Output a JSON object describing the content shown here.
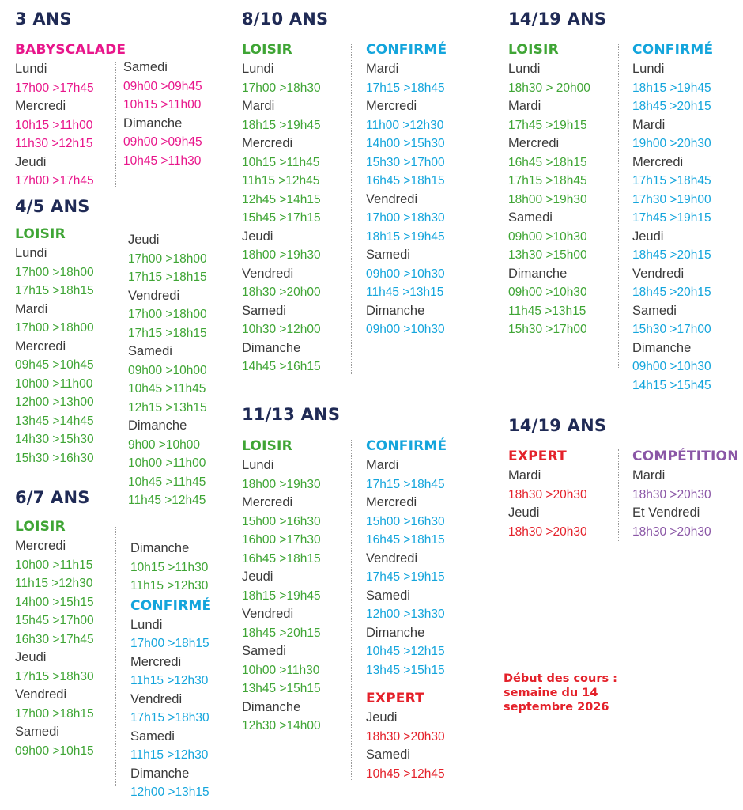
{
  "colors": {
    "babyscalade": "#e8168b",
    "loisir": "#3fa535",
    "confirme": "#14a5dc",
    "expert": "#e4212a",
    "competition": "#8a56a6",
    "heading": "#1f2a55"
  },
  "s3": {
    "title": "3 ANS",
    "cat": "BABYSCALADE",
    "a": [
      [
        "day",
        "Lundi"
      ],
      [
        "t",
        "17h00 >17h45"
      ],
      [
        "day",
        "Mercredi"
      ],
      [
        "t",
        "10h15 >11h00"
      ],
      [
        "t",
        "11h30 >12h15"
      ],
      [
        "day",
        "Jeudi"
      ],
      [
        "t",
        "17h00 >17h45"
      ]
    ],
    "b": [
      [
        "day",
        "Samedi"
      ],
      [
        "t",
        "09h00 >09h45"
      ],
      [
        "t",
        "10h15 >11h00"
      ],
      [
        "day",
        "Dimanche"
      ],
      [
        "t",
        "09h00 >09h45"
      ],
      [
        "t",
        "10h45 >11h30"
      ]
    ]
  },
  "s45": {
    "title": "4/5 ANS",
    "cat": "LOISIR",
    "a": [
      [
        "day",
        "Lundi"
      ],
      [
        "t",
        "17h00 >18h00"
      ],
      [
        "t",
        "17h15 >18h15"
      ],
      [
        "day",
        "Mardi"
      ],
      [
        "t",
        "17h00 >18h00"
      ],
      [
        "day",
        "Mercredi"
      ],
      [
        "t",
        "09h45 >10h45"
      ],
      [
        "t",
        "10h00 >11h00"
      ],
      [
        "t",
        "12h00 >13h00"
      ],
      [
        "t",
        "13h45 >14h45"
      ],
      [
        "t",
        "14h30 >15h30"
      ],
      [
        "t",
        "15h30 >16h30"
      ]
    ],
    "b": [
      [
        "day",
        "Jeudi"
      ],
      [
        "t",
        "17h00 >18h00"
      ],
      [
        "t",
        "17h15 >18h15"
      ],
      [
        "day",
        "Vendredi"
      ],
      [
        "t",
        "17h00 >18h00"
      ],
      [
        "t",
        "17h15 >18h15"
      ],
      [
        "day",
        "Samedi"
      ],
      [
        "t",
        "09h00 >10h00"
      ],
      [
        "t",
        "10h45 >11h45"
      ],
      [
        "t",
        "12h15 >13h15"
      ],
      [
        "day",
        "Dimanche"
      ],
      [
        "t",
        "9h00 >10h00"
      ],
      [
        "t",
        "10h00 >11h00"
      ],
      [
        "t",
        "10h45 >11h45"
      ],
      [
        "t",
        "11h45 >12h45"
      ]
    ]
  },
  "s67": {
    "title": "6/7 ANS",
    "cat": "LOISIR",
    "cat2": "CONFIRMÉ",
    "a": [
      [
        "day",
        "Mercredi"
      ],
      [
        "t",
        "10h00 >11h15"
      ],
      [
        "t",
        "11h15 >12h30"
      ],
      [
        "t",
        "14h00 >15h15"
      ],
      [
        "t",
        "15h45 >17h00"
      ],
      [
        "t",
        "16h30 >17h45"
      ],
      [
        "day",
        "Jeudi"
      ],
      [
        "t",
        "17h15 >18h30"
      ],
      [
        "day",
        "Vendredi"
      ],
      [
        "t",
        "17h00 >18h15"
      ],
      [
        "day",
        "Samedi"
      ],
      [
        "t",
        "09h00 >10h15"
      ]
    ],
    "b": [
      [
        "day",
        "Dimanche"
      ],
      [
        "t",
        "10h15 >11h30"
      ],
      [
        "t",
        "11h15 >12h30"
      ]
    ],
    "c": [
      [
        "day",
        "Lundi"
      ],
      [
        "t",
        "17h00 >18h15"
      ],
      [
        "day",
        "Mercredi"
      ],
      [
        "t",
        "11h15 >12h30"
      ],
      [
        "day",
        "Vendredi"
      ],
      [
        "t",
        "17h15 >18h30"
      ],
      [
        "day",
        "Samedi"
      ],
      [
        "t",
        "11h15 >12h30"
      ],
      [
        "day",
        "Dimanche"
      ],
      [
        "t",
        "12h00 >13h15"
      ]
    ]
  },
  "s810": {
    "title": "8/10 ANS",
    "cat": "LOISIR",
    "cat2": "CONFIRMÉ",
    "a": [
      [
        "day",
        "Lundi"
      ],
      [
        "t",
        "17h00 >18h30"
      ],
      [
        "day",
        "Mardi"
      ],
      [
        "t",
        "18h15 >19h45"
      ],
      [
        "day",
        "Mercredi"
      ],
      [
        "t",
        "10h15 >11h45"
      ],
      [
        "t",
        "11h15 >12h45"
      ],
      [
        "t",
        "12h45 >14h15"
      ],
      [
        "t",
        "15h45 >17h15"
      ],
      [
        "day",
        "Jeudi"
      ],
      [
        "t",
        "18h00 >19h30"
      ],
      [
        "day",
        "Vendredi"
      ],
      [
        "t",
        "18h30 >20h00"
      ],
      [
        "day",
        "Samedi"
      ],
      [
        "t",
        "10h30 >12h00"
      ],
      [
        "day",
        "Dimanche"
      ],
      [
        "t",
        "14h45 >16h15"
      ]
    ],
    "b": [
      [
        "day",
        "Mardi"
      ],
      [
        "t",
        "17h15 >18h45"
      ],
      [
        "day",
        "Mercredi"
      ],
      [
        "t",
        "11h00 >12h30"
      ],
      [
        "t",
        "14h00 >15h30"
      ],
      [
        "t",
        "15h30 >17h00"
      ],
      [
        "t",
        "16h45 >18h15"
      ],
      [
        "day",
        "Vendredi"
      ],
      [
        "t",
        "17h00 >18h30"
      ],
      [
        "t",
        "18h15 >19h45"
      ],
      [
        "day",
        "Samedi"
      ],
      [
        "t",
        "09h00 >10h30"
      ],
      [
        "t",
        "11h45 >13h15"
      ],
      [
        "day",
        "Dimanche"
      ],
      [
        "t",
        "09h00 >10h30"
      ]
    ]
  },
  "s1113": {
    "title": "11/13 ANS",
    "cat": "LOISIR",
    "cat2": "CONFIRMÉ",
    "cat3": "EXPERT",
    "a": [
      [
        "day",
        "Lundi"
      ],
      [
        "t",
        "18h00 >19h30"
      ],
      [
        "day",
        "Mercredi"
      ],
      [
        "t",
        "15h00 >16h30"
      ],
      [
        "t",
        "16h00 >17h30"
      ],
      [
        "t",
        "16h45 >18h15"
      ],
      [
        "day",
        "Jeudi"
      ],
      [
        "t",
        "18h15 >19h45"
      ],
      [
        "day",
        "Vendredi"
      ],
      [
        "t",
        "18h45 >20h15"
      ],
      [
        "day",
        "Samedi"
      ],
      [
        "t",
        "10h00 >11h30"
      ],
      [
        "t",
        "13h45 >15h15"
      ],
      [
        "day",
        "Dimanche"
      ],
      [
        "t",
        "12h30 >14h00"
      ]
    ],
    "b": [
      [
        "day",
        "Mardi"
      ],
      [
        "t",
        "17h15 >18h45"
      ],
      [
        "day",
        "Mercredi"
      ],
      [
        "t",
        "15h00 >16h30"
      ],
      [
        "t",
        "16h45 >18h15"
      ],
      [
        "day",
        "Vendredi"
      ],
      [
        "t",
        "17h45 >19h15"
      ],
      [
        "day",
        "Samedi"
      ],
      [
        "t",
        "12h00 >13h30"
      ],
      [
        "day",
        "Dimanche"
      ],
      [
        "t",
        "10h45 >12h15"
      ],
      [
        "t",
        "13h45 >15h15"
      ]
    ],
    "c": [
      [
        "day",
        "Jeudi"
      ],
      [
        "t",
        "18h30 >20h30"
      ],
      [
        "day",
        "Samedi"
      ],
      [
        "t",
        "10h45 >12h45"
      ]
    ]
  },
  "s1419a": {
    "title": "14/19 ANS",
    "cat": "LOISIR",
    "cat2": "CONFIRMÉ",
    "a": [
      [
        "day",
        "Lundi"
      ],
      [
        "t",
        "18h30 > 20h00"
      ],
      [
        "day",
        "Mardi"
      ],
      [
        "t",
        "17h45 >19h15"
      ],
      [
        "day",
        "Mercredi"
      ],
      [
        "t",
        "16h45 >18h15"
      ],
      [
        "t",
        "17h15 >18h45"
      ],
      [
        "t",
        "18h00 >19h30"
      ],
      [
        "day",
        "Samedi"
      ],
      [
        "t",
        "09h00 >10h30"
      ],
      [
        "t",
        "13h30 >15h00"
      ],
      [
        "day",
        "Dimanche"
      ],
      [
        "t",
        "09h00 >10h30"
      ],
      [
        "t",
        "11h45 >13h15"
      ],
      [
        "t",
        "15h30 >17h00"
      ]
    ],
    "b": [
      [
        "day",
        "Lundi"
      ],
      [
        "t",
        "18h15 >19h45"
      ],
      [
        "t",
        "18h45 >20h15"
      ],
      [
        "day",
        "Mardi"
      ],
      [
        "t",
        "19h00 >20h30"
      ],
      [
        "day",
        "Mercredi"
      ],
      [
        "t",
        "17h15 >18h45"
      ],
      [
        "t",
        "17h30 >19h00"
      ],
      [
        "t",
        "17h45 >19h15"
      ],
      [
        "day",
        "Jeudi"
      ],
      [
        "t",
        "18h45 >20h15"
      ],
      [
        "day",
        "Vendredi"
      ],
      [
        "t",
        "18h45 >20h15"
      ],
      [
        "day",
        "Samedi"
      ],
      [
        "t",
        "15h30 >17h00"
      ],
      [
        "day",
        "Dimanche"
      ],
      [
        "t",
        "09h00 >10h30"
      ],
      [
        "t",
        "14h15 >15h45"
      ]
    ]
  },
  "s1419b": {
    "title": "14/19 ANS",
    "cat": "EXPERT",
    "cat2": "COMPÉTITION",
    "a": [
      [
        "day",
        "Mardi"
      ],
      [
        "t",
        "18h30 >20h30"
      ],
      [
        "day",
        "Jeudi"
      ],
      [
        "t",
        "18h30 >20h30"
      ]
    ],
    "b": [
      [
        "day",
        "Mardi"
      ],
      [
        "t",
        "18h30 >20h30"
      ],
      [
        "day",
        "Et Vendredi"
      ],
      [
        "t",
        "18h30 >20h30"
      ]
    ]
  },
  "note": [
    "Début des cours :",
    "semaine du 14",
    "septembre 2026"
  ]
}
